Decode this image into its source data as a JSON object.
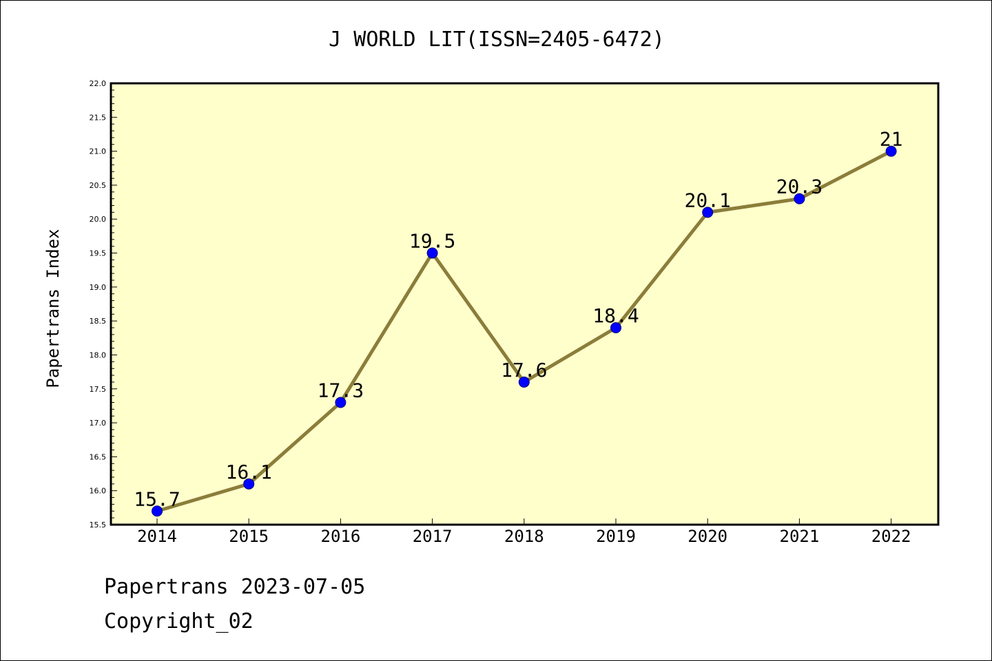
{
  "footer": {
    "date_line": "Papertrans 2023-07-05",
    "copyright_line": "Copyright_02"
  },
  "colors": {
    "plot_background": "#ffffcc",
    "line": "#8b7d3a",
    "marker_fill": "#0000ff",
    "marker_edge": "#000080",
    "axis": "#000000"
  },
  "chart_data": {
    "type": "line",
    "title": "J WORLD LIT(ISSN=2405-6472)",
    "xlabel": "",
    "ylabel": "Papertrans Index",
    "categories": [
      "2014",
      "2015",
      "2016",
      "2017",
      "2018",
      "2019",
      "2020",
      "2021",
      "2022"
    ],
    "series": [
      {
        "values": [
          15.7,
          16.1,
          17.3,
          19.5,
          17.6,
          18.4,
          20.1,
          20.3,
          21
        ],
        "labels": [
          "15.7",
          "16.1",
          "17.3",
          "19.5",
          "17.6",
          "18.4",
          "20.1",
          "20.3",
          "21"
        ]
      }
    ],
    "ylim": [
      15.5,
      22.0
    ],
    "yticks": [
      "15.5",
      "16.0",
      "16.5",
      "17.0",
      "17.5",
      "18.0",
      "18.5",
      "19.0",
      "19.5",
      "20.0",
      "20.5",
      "21.0",
      "21.5",
      "22.0"
    ],
    "grid": false,
    "legend": "none"
  }
}
